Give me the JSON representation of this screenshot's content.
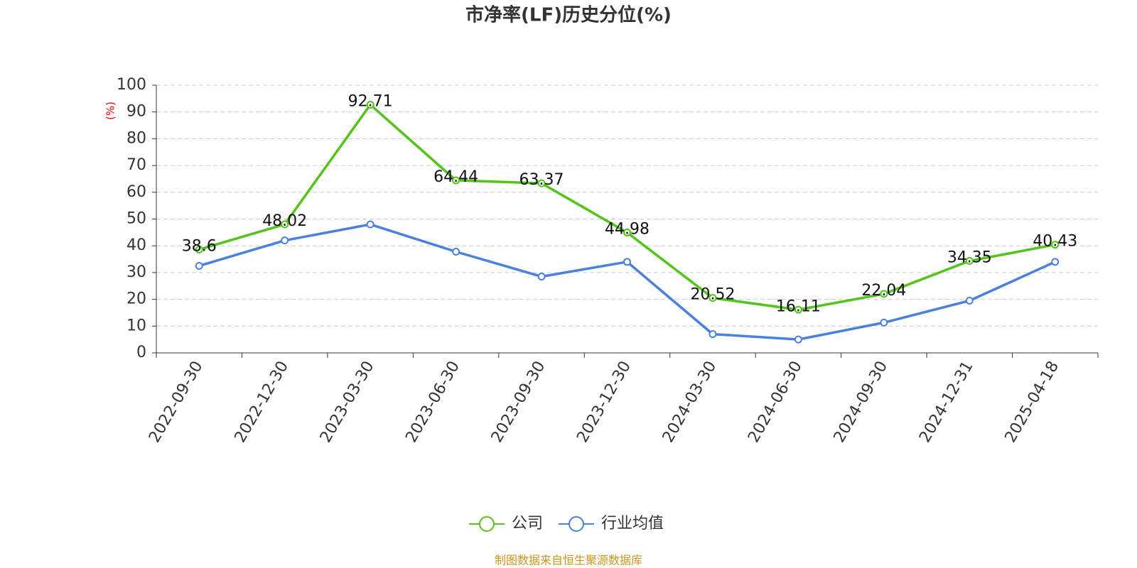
{
  "chart_data": {
    "type": "line",
    "title": "市净率(LF)历史分位(%)",
    "y_label": "(%)",
    "categories": [
      "2022-09-30",
      "2022-12-30",
      "2023-03-30",
      "2023-06-30",
      "2023-09-30",
      "2023-12-30",
      "2024-03-30",
      "2024-06-30",
      "2024-09-30",
      "2024-12-31",
      "2025-04-18"
    ],
    "series": [
      {
        "name": "公司",
        "color": "#52c41a",
        "values": [
          38.6,
          48.02,
          92.71,
          64.44,
          63.37,
          44.98,
          20.52,
          16.11,
          22.04,
          34.35,
          40.43
        ]
      },
      {
        "name": "行业均值",
        "color": "#4a80e0",
        "values": [
          32.5,
          42,
          48,
          37.8,
          28.5,
          34,
          7,
          5,
          11.3,
          19.5,
          34
        ]
      }
    ],
    "ylim": [
      0,
      100
    ],
    "yticks": [
      0,
      10,
      20,
      30,
      40,
      50,
      60,
      70,
      80,
      90,
      100
    ],
    "grid": true,
    "source": "制图数据来自恒生聚源数据库"
  }
}
